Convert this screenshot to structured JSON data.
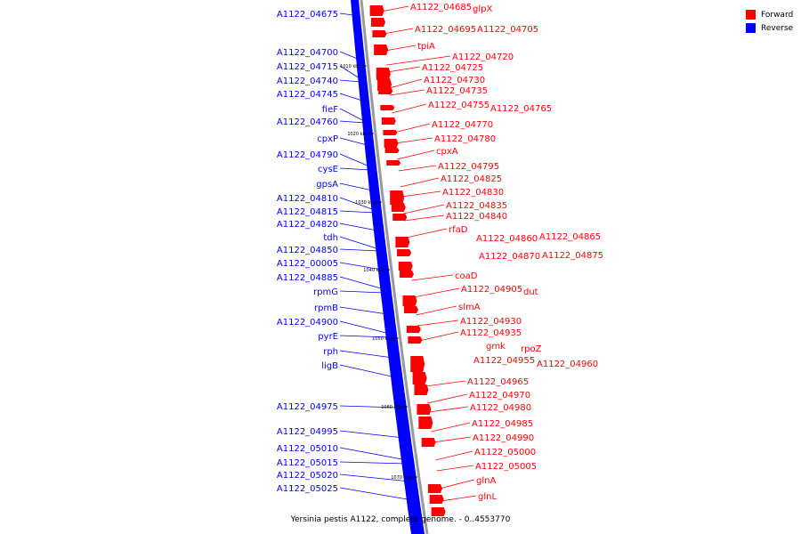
{
  "caption": "Yersinia pestis A1122, complete genome. - 0..4553770",
  "legend": [
    {
      "label": "Forward",
      "color": "#ff0000"
    },
    {
      "label": "Reverse",
      "color": "#0000ff"
    }
  ],
  "colors": {
    "forward": "#ff0000",
    "reverse": "#0000ff",
    "backbone": "#9a9a9a"
  },
  "ticks": [
    "1010 kbp",
    "1020 kbp",
    "1030 kbp",
    "1040 kbp",
    "1050 kbp",
    "1060 kbp",
    "1070 kbp"
  ],
  "reverse_labels": [
    "A1122_04675",
    "A1122_04700",
    "A1122_04715",
    "A1122_04740",
    "A1122_04745",
    "fieF",
    "A1122_04760",
    "cpxP",
    "A1122_04790",
    "cysE",
    "gpsA",
    "A1122_04810",
    "A1122_04815",
    "A1122_04820",
    "tdh",
    "A1122_04850",
    "A1122_00005",
    "A1122_04885",
    "rpmG",
    "rpmB",
    "A1122_04900",
    "pyrE",
    "rph",
    "ligB",
    "A1122_04975",
    "A1122_04995",
    "A1122_05010",
    "A1122_05015",
    "A1122_05020",
    "A1122_05025"
  ],
  "forward_labels": [
    "A1122_04685",
    "glpX",
    "A1122_04695",
    "A1122_04705",
    "tpiA",
    "A1122_04720",
    "A1122_04725",
    "A1122_04730",
    "A1122_04735",
    "A1122_04755",
    "A1122_04765",
    "A1122_04770",
    "A1122_04780",
    "cpxA",
    "A1122_04795",
    "A1122_04825",
    "A1122_04830",
    "A1122_04835",
    "A1122_04840",
    "rfaD",
    "A1122_04860",
    "A1122_04865",
    "A1122_04870",
    "A1122_04875",
    "coaD",
    "A1122_04905",
    "dut",
    "slmA",
    "A1122_04930",
    "A1122_04935",
    "gmk",
    "rpoZ",
    "A1122_04955",
    "A1122_04960",
    "A1122_04965",
    "A1122_04970",
    "A1122_04980",
    "A1122_04985",
    "A1122_04990",
    "A1122_05000",
    "A1122_05005",
    "glnA",
    "glnL"
  ]
}
